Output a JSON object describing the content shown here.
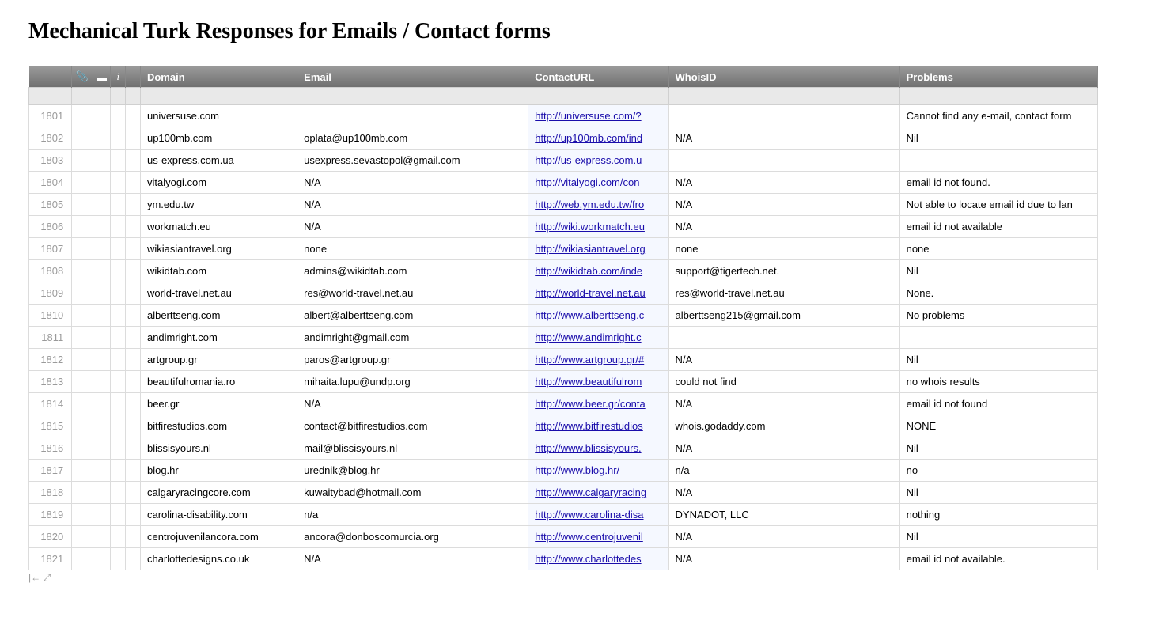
{
  "page_title": "Mechanical Turk Responses for Emails / Contact forms",
  "columns": {
    "domain": "Domain",
    "email": "Email",
    "contact": "ContactURL",
    "whois": "WhoisID",
    "problems": "Problems"
  },
  "header_icons": {
    "clip": "📎",
    "comment": "▬",
    "info": "i"
  },
  "colors": {
    "link": "#1a0dab",
    "header_grad_top": "#9a9a9a",
    "header_grad_bot": "#707070",
    "row_border": "#dcdcdc",
    "filter_bg": "#e9e9e9",
    "contact_col_bg": "#f5f8ff",
    "rownum_color": "#9a9a9a"
  },
  "rows": [
    {
      "n": "1801",
      "domain": "universuse.com",
      "email": "",
      "contact": "http://universuse.com/?",
      "whois": "",
      "problems": "Cannot find any e-mail, contact form"
    },
    {
      "n": "1802",
      "domain": "up100mb.com",
      "email": "oplata@up100mb.com",
      "contact": "http://up100mb.com/ind",
      "whois": "N/A",
      "problems": "Nil"
    },
    {
      "n": "1803",
      "domain": "us-express.com.ua",
      "email": "usexpress.sevastopol@gmail.com",
      "contact": "http://us-express.com.u",
      "whois": "",
      "problems": ""
    },
    {
      "n": "1804",
      "domain": "vitalyogi.com",
      "email": "N/A",
      "contact": "http://vitalyogi.com/con",
      "whois": "N/A",
      "problems": "email id not found."
    },
    {
      "n": "1805",
      "domain": "ym.edu.tw",
      "email": "N/A",
      "contact": "http://web.ym.edu.tw/fro",
      "whois": "N/A",
      "problems": "Not able to locate email id due to lan"
    },
    {
      "n": "1806",
      "domain": "workmatch.eu",
      "email": "N/A",
      "contact": "http://wiki.workmatch.eu",
      "whois": "N/A",
      "problems": "email id not available"
    },
    {
      "n": "1807",
      "domain": "wikiasiantravel.org",
      "email": "none",
      "contact": "http://wikiasiantravel.org",
      "whois": "none",
      "problems": "none"
    },
    {
      "n": "1808",
      "domain": "wikidtab.com",
      "email": "admins@wikidtab.com",
      "contact": "http://wikidtab.com/inde",
      "whois": "support@tigertech.net.",
      "problems": "Nil"
    },
    {
      "n": "1809",
      "domain": "world-travel.net.au",
      "email": "res@world-travel.net.au",
      "contact": "http://world-travel.net.au",
      "whois": "res@world-travel.net.au",
      "problems": "None."
    },
    {
      "n": "1810",
      "domain": "alberttseng.com",
      "email": "albert@alberttseng.com",
      "contact": "http://www.alberttseng.c",
      "whois": "alberttseng215@gmail.com",
      "problems": "No problems"
    },
    {
      "n": "1811",
      "domain": "andimright.com",
      "email": "andimright@gmail.com",
      "contact": "http://www.andimright.c",
      "whois": "",
      "problems": ""
    },
    {
      "n": "1812",
      "domain": "artgroup.gr",
      "email": "paros@artgroup.gr",
      "contact": "http://www.artgroup.gr/#",
      "whois": "N/A",
      "problems": "Nil"
    },
    {
      "n": "1813",
      "domain": "beautifulromania.ro",
      "email": "mihaita.lupu@undp.org",
      "contact": "http://www.beautifulrom",
      "whois": "could not find",
      "problems": "no whois results"
    },
    {
      "n": "1814",
      "domain": "beer.gr",
      "email": "N/A",
      "contact": "http://www.beer.gr/conta",
      "whois": "N/A",
      "problems": "email id not found"
    },
    {
      "n": "1815",
      "domain": "bitfirestudios.com",
      "email": "contact@bitfirestudios.com",
      "contact": "http://www.bitfirestudios",
      "whois": "whois.godaddy.com",
      "problems": "NONE"
    },
    {
      "n": "1816",
      "domain": "blissisyours.nl",
      "email": "mail@blissisyours.nl",
      "contact": "http://www.blissisyours.",
      "whois": "N/A",
      "problems": "Nil"
    },
    {
      "n": "1817",
      "domain": "blog.hr",
      "email": "urednik@blog.hr",
      "contact": "http://www.blog.hr/",
      "whois": "n/a",
      "problems": "no"
    },
    {
      "n": "1818",
      "domain": "calgaryracingcore.com",
      "email": "kuwaitybad@hotmail.com",
      "contact": "http://www.calgaryracing",
      "whois": "N/A",
      "problems": "Nil"
    },
    {
      "n": "1819",
      "domain": "carolina-disability.com",
      "email": "n/a",
      "contact": "http://www.carolina-disa",
      "whois": "DYNADOT, LLC",
      "problems": "nothing"
    },
    {
      "n": "1820",
      "domain": "centrojuvenilancora.com",
      "email": "ancora@donboscomurcia.org",
      "contact": "http://www.centrojuvenil",
      "whois": "N/A",
      "problems": "Nil"
    },
    {
      "n": "1821",
      "domain": "charlottedesigns.co.uk",
      "email": "N/A",
      "contact": "http://www.charlottedes",
      "whois": "N/A",
      "problems": "email id not available."
    }
  ],
  "footer": {
    "collapse": "|←",
    "expand": "⤢"
  }
}
